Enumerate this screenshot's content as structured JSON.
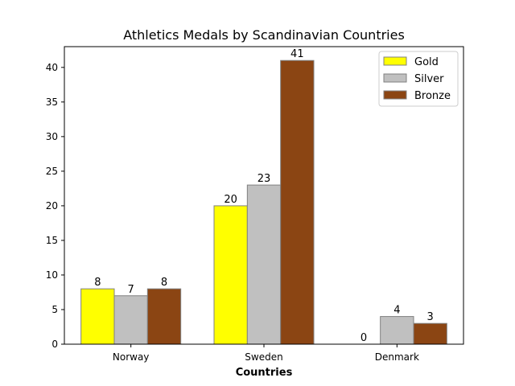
{
  "chart_data": {
    "type": "bar",
    "title": "Athletics Medals by Scandinavian Countries",
    "xlabel": "Countries",
    "ylabel": "",
    "categories": [
      "Norway",
      "Sweden",
      "Denmark"
    ],
    "series": [
      {
        "name": "Gold",
        "values": [
          8,
          20,
          0
        ],
        "color": "#ffff00"
      },
      {
        "name": "Silver",
        "values": [
          7,
          23,
          4
        ],
        "color": "#c0c0c0"
      },
      {
        "name": "Bronze",
        "values": [
          8,
          41,
          3
        ],
        "color": "#8b4513"
      }
    ],
    "ylim": [
      0,
      43
    ],
    "yticks": [
      0,
      5,
      10,
      15,
      20,
      25,
      30,
      35,
      40
    ],
    "grid": false,
    "legend_position": "top-right",
    "edge_color": "#808080"
  }
}
